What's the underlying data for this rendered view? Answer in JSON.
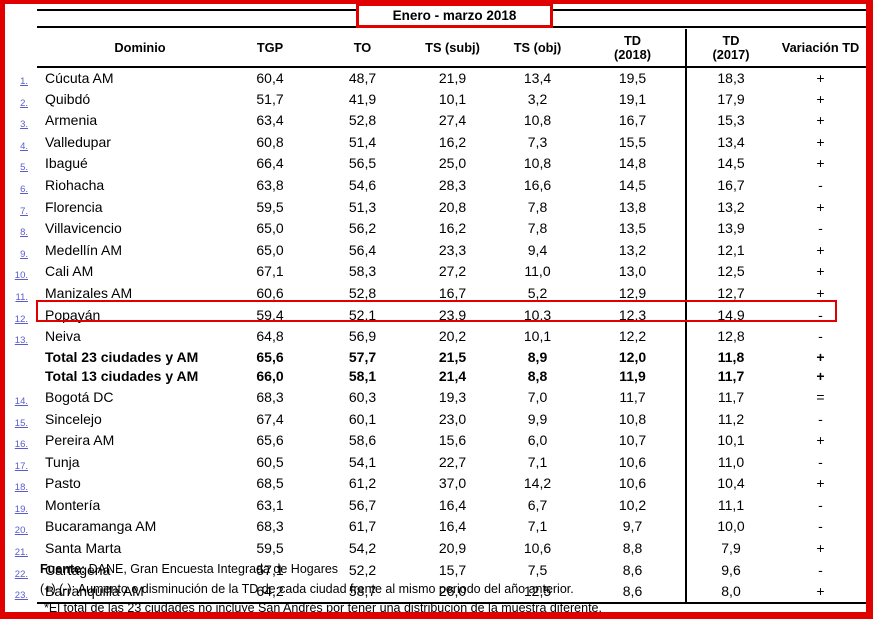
{
  "title": "Enero - marzo 2018",
  "colors": {
    "annotation_red": "#e00000",
    "row_link_blue": "#5b5bd0"
  },
  "columns": [
    {
      "line1": "Dominio",
      "line2": ""
    },
    {
      "line1": "TGP",
      "line2": ""
    },
    {
      "line1": "TO",
      "line2": ""
    },
    {
      "line1": "TS (subj)",
      "line2": ""
    },
    {
      "line1": "TS (obj)",
      "line2": ""
    },
    {
      "line1": "TD",
      "line2": "(2018)"
    },
    {
      "line1": "TD",
      "line2": "(2017)"
    },
    {
      "line1": "Variación TD",
      "line2": ""
    }
  ],
  "rows": [
    {
      "num": "1.",
      "city": "Cúcuta AM",
      "tgp": "60,4",
      "to": "48,7",
      "ts_subj": "21,9",
      "ts_obj": "13,4",
      "td_2018": "19,5",
      "td_2017": "18,3",
      "variacion": "+",
      "is_total": false
    },
    {
      "num": "2.",
      "city": "Quibdó",
      "tgp": "51,7",
      "to": "41,9",
      "ts_subj": "10,1",
      "ts_obj": "3,2",
      "td_2018": "19,1",
      "td_2017": "17,9",
      "variacion": "+",
      "is_total": false
    },
    {
      "num": "3.",
      "city": "Armenia",
      "tgp": "63,4",
      "to": "52,8",
      "ts_subj": "27,4",
      "ts_obj": "10,8",
      "td_2018": "16,7",
      "td_2017": "15,3",
      "variacion": "+",
      "is_total": false
    },
    {
      "num": "4.",
      "city": "Valledupar",
      "tgp": "60,8",
      "to": "51,4",
      "ts_subj": "16,2",
      "ts_obj": "7,3",
      "td_2018": "15,5",
      "td_2017": "13,4",
      "variacion": "+",
      "is_total": false
    },
    {
      "num": "5.",
      "city": "Ibagué",
      "tgp": "66,4",
      "to": "56,5",
      "ts_subj": "25,0",
      "ts_obj": "10,8",
      "td_2018": "14,8",
      "td_2017": "14,5",
      "variacion": "+",
      "is_total": false
    },
    {
      "num": "6.",
      "city": "Riohacha",
      "tgp": "63,8",
      "to": "54,6",
      "ts_subj": "28,3",
      "ts_obj": "16,6",
      "td_2018": "14,5",
      "td_2017": "16,7",
      "variacion": "-",
      "is_total": false
    },
    {
      "num": "7.",
      "city": "Florencia",
      "tgp": "59,5",
      "to": "51,3",
      "ts_subj": "20,8",
      "ts_obj": "7,8",
      "td_2018": "13,8",
      "td_2017": "13,2",
      "variacion": "+",
      "is_total": false
    },
    {
      "num": "8.",
      "city": "Villavicencio",
      "tgp": "65,0",
      "to": "56,2",
      "ts_subj": "16,2",
      "ts_obj": "7,8",
      "td_2018": "13,5",
      "td_2017": "13,9",
      "variacion": "-",
      "is_total": false
    },
    {
      "num": "9.",
      "city": "Medellín AM",
      "tgp": "65,0",
      "to": "56,4",
      "ts_subj": "23,3",
      "ts_obj": "9,4",
      "td_2018": "13,2",
      "td_2017": "12,1",
      "variacion": "+",
      "is_total": false
    },
    {
      "num": "10.",
      "city": "Cali AM",
      "tgp": "67,1",
      "to": "58,3",
      "ts_subj": "27,2",
      "ts_obj": "11,0",
      "td_2018": "13,0",
      "td_2017": "12,5",
      "variacion": "+",
      "is_total": false
    },
    {
      "num": "11.",
      "city": "Manizales AM",
      "tgp": "60,6",
      "to": "52,8",
      "ts_subj": "16,7",
      "ts_obj": "5,2",
      "td_2018": "12,9",
      "td_2017": "12,7",
      "variacion": "+",
      "is_total": false
    },
    {
      "num": "12.",
      "city": "Popayán",
      "tgp": "59,4",
      "to": "52,1",
      "ts_subj": "23,9",
      "ts_obj": "10,3",
      "td_2018": "12,3",
      "td_2017": "14,9",
      "variacion": "-",
      "is_total": false
    },
    {
      "num": "13.",
      "city": "Neiva",
      "tgp": "64,8",
      "to": "56,9",
      "ts_subj": "20,2",
      "ts_obj": "10,1",
      "td_2018": "12,2",
      "td_2017": "12,8",
      "variacion": "-",
      "is_total": false
    },
    {
      "num": "",
      "city": "Total 23 ciudades y AM",
      "tgp": "65,6",
      "to": "57,7",
      "ts_subj": "21,5",
      "ts_obj": "8,9",
      "td_2018": "12,0",
      "td_2017": "11,8",
      "variacion": "+",
      "is_total": true
    },
    {
      "num": "",
      "city": "Total 13 ciudades y AM",
      "tgp": "66,0",
      "to": "58,1",
      "ts_subj": "21,4",
      "ts_obj": "8,8",
      "td_2018": "11,9",
      "td_2017": "11,7",
      "variacion": "+",
      "is_total": true
    },
    {
      "num": "14.",
      "city": "Bogotá DC",
      "tgp": "68,3",
      "to": "60,3",
      "ts_subj": "19,3",
      "ts_obj": "7,0",
      "td_2018": "11,7",
      "td_2017": "11,7",
      "variacion": "=",
      "is_total": false
    },
    {
      "num": "15.",
      "city": "Sincelejo",
      "tgp": "67,4",
      "to": "60,1",
      "ts_subj": "23,0",
      "ts_obj": "9,9",
      "td_2018": "10,8",
      "td_2017": "11,2",
      "variacion": "-",
      "is_total": false
    },
    {
      "num": "16.",
      "city": "Pereira AM",
      "tgp": "65,6",
      "to": "58,6",
      "ts_subj": "15,6",
      "ts_obj": "6,0",
      "td_2018": "10,7",
      "td_2017": "10,1",
      "variacion": "+",
      "is_total": false
    },
    {
      "num": "17.",
      "city": "Tunja",
      "tgp": "60,5",
      "to": "54,1",
      "ts_subj": "22,7",
      "ts_obj": "7,1",
      "td_2018": "10,6",
      "td_2017": "11,0",
      "variacion": "-",
      "is_total": false
    },
    {
      "num": "18.",
      "city": "Pasto",
      "tgp": "68,5",
      "to": "61,2",
      "ts_subj": "37,0",
      "ts_obj": "14,2",
      "td_2018": "10,6",
      "td_2017": "10,4",
      "variacion": "+",
      "is_total": false
    },
    {
      "num": "19.",
      "city": "Montería",
      "tgp": "63,1",
      "to": "56,7",
      "ts_subj": "16,4",
      "ts_obj": "6,7",
      "td_2018": "10,2",
      "td_2017": "11,1",
      "variacion": "-",
      "is_total": false
    },
    {
      "num": "20.",
      "city": "Bucaramanga AM",
      "tgp": "68,3",
      "to": "61,7",
      "ts_subj": "16,4",
      "ts_obj": "7,1",
      "td_2018": "9,7",
      "td_2017": "10,0",
      "variacion": "-",
      "is_total": false
    },
    {
      "num": "21.",
      "city": "Santa Marta",
      "tgp": "59,5",
      "to": "54,2",
      "ts_subj": "20,9",
      "ts_obj": "10,6",
      "td_2018": "8,8",
      "td_2017": "7,9",
      "variacion": "+",
      "is_total": false
    },
    {
      "num": "22.",
      "city": "Cartagena",
      "tgp": "57,1",
      "to": "52,2",
      "ts_subj": "15,7",
      "ts_obj": "7,5",
      "td_2018": "8,6",
      "td_2017": "9,6",
      "variacion": "-",
      "is_total": false
    },
    {
      "num": "23.",
      "city": "Barranquilla AM",
      "tgp": "64,2",
      "to": "58,7",
      "ts_subj": "26,0",
      "ts_obj": "12,5",
      "td_2018": "8,6",
      "td_2017": "8,0",
      "variacion": "+",
      "is_total": false
    }
  ],
  "highlight": {
    "highlighted_city": "Neiva"
  },
  "footer": {
    "source_label": "Fuente:",
    "source_text": " DANE, Gran Encuesta Integrada de Hogares",
    "note_signs": "(+) (-): Aumento o disminución de la TD de cada ciudad frente al mismo periodo del año anterior.",
    "note_total": "*El total de las 23 ciudades no incluye San Andrés por tener una distribución de la muestra diferente."
  }
}
